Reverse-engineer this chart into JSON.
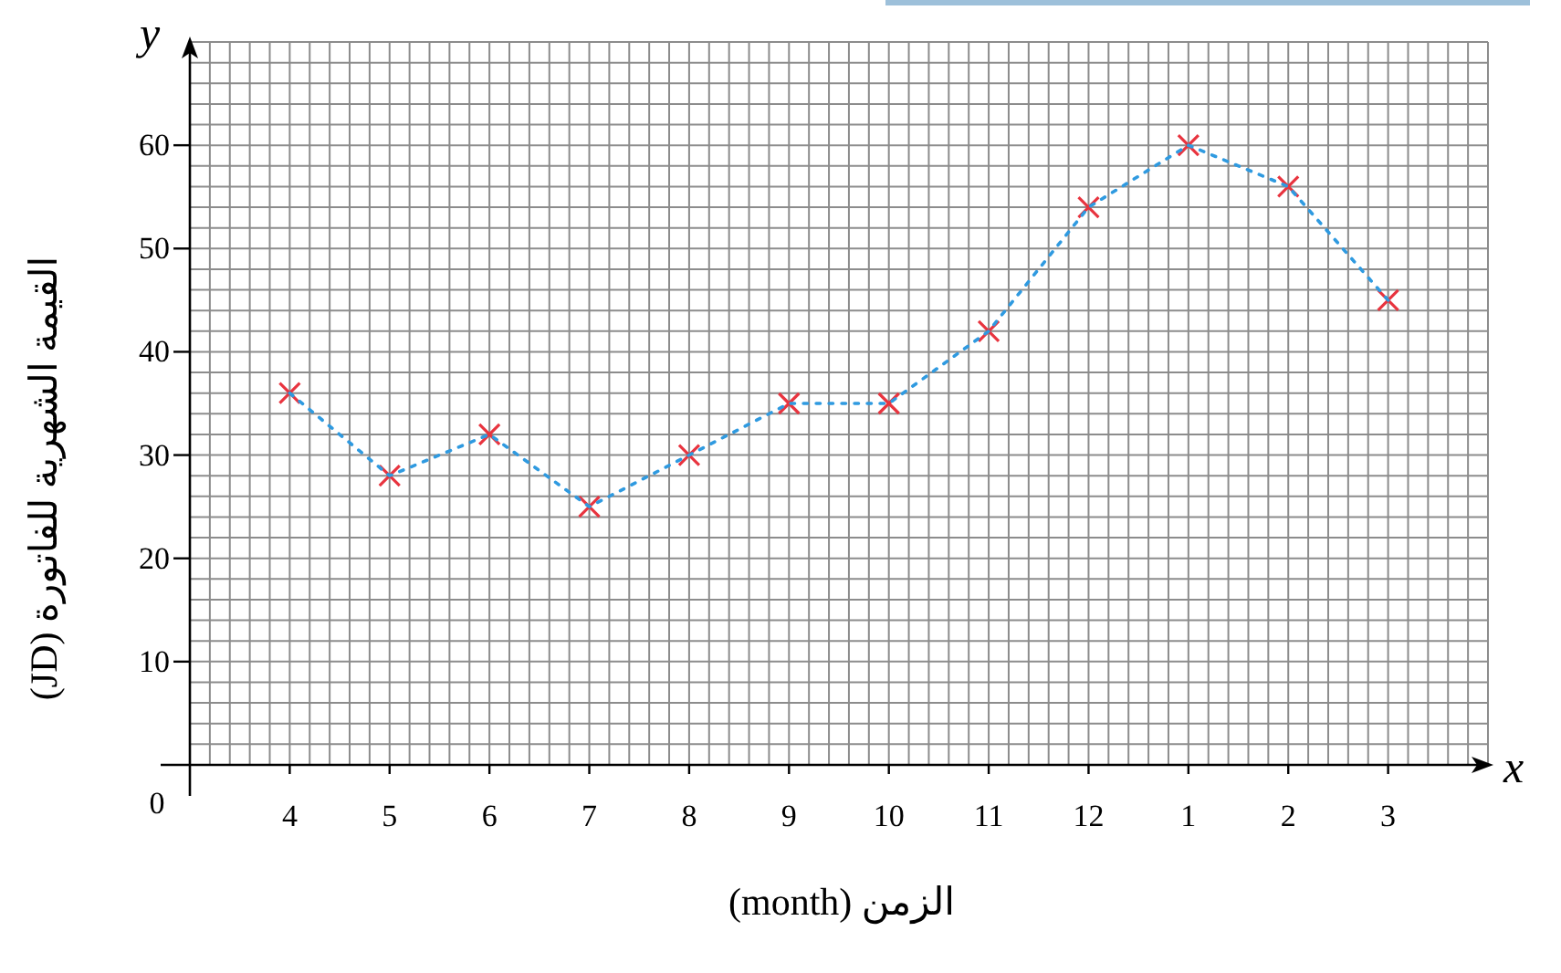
{
  "chart_data": {
    "type": "line",
    "xlabel": "الزمن (month)",
    "ylabel": "القيمة الشهرية للفاتورة (JD)",
    "annotations": [
      "y",
      "x",
      "0"
    ],
    "categories": [
      "4",
      "5",
      "6",
      "7",
      "8",
      "9",
      "10",
      "11",
      "12",
      "1",
      "2",
      "3"
    ],
    "series": [
      {
        "type": "line",
        "color": "#2f9ae0",
        "marker": "none",
        "values": [
          36,
          28,
          32,
          25,
          30,
          35,
          35,
          42,
          54,
          60,
          56,
          45
        ]
      },
      {
        "type": "scatter",
        "color": "#e8343f",
        "values": [
          36,
          28,
          32,
          25,
          30,
          35,
          35,
          42,
          54,
          60,
          56,
          45
        ]
      }
    ],
    "ylim": [
      0,
      70
    ],
    "yticks": [
      10,
      20,
      30,
      40,
      50,
      60
    ],
    "grid": true,
    "marker": "cross",
    "line_style": "dashed"
  }
}
